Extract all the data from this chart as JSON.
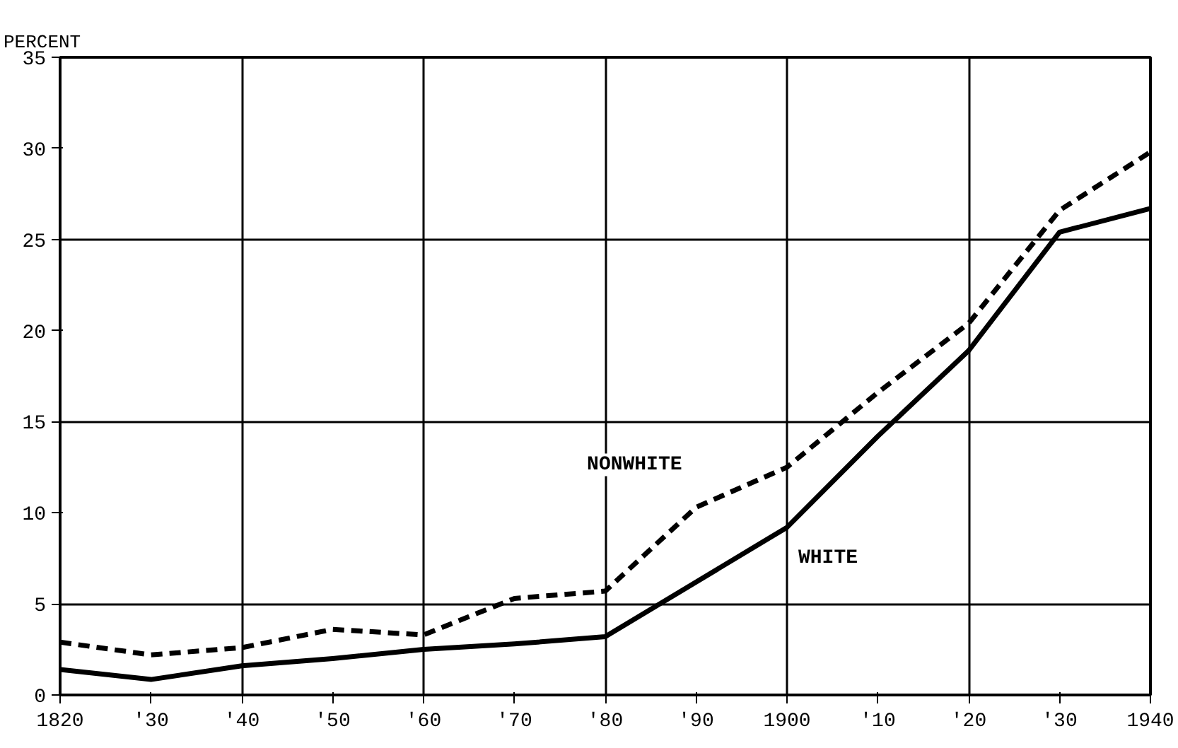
{
  "chart_data": {
    "type": "line",
    "ylabel": "PERCENT",
    "x": [
      1820,
      1830,
      1840,
      1850,
      1860,
      1870,
      1880,
      1890,
      1900,
      1910,
      1920,
      1930,
      1940
    ],
    "series": [
      {
        "name": "WHITE",
        "color": "#000000",
        "line_style": "solid",
        "values": [
          1.4,
          0.85,
          1.6,
          2.0,
          2.5,
          2.8,
          3.2,
          6.2,
          9.2,
          14.2,
          18.9,
          25.4,
          26.7
        ]
      },
      {
        "name": "NONWHITE",
        "color": "#000000",
        "line_style": "dashed",
        "values": [
          2.9,
          2.2,
          2.6,
          3.6,
          3.3,
          5.3,
          5.7,
          10.3,
          12.5,
          16.6,
          20.4,
          26.6,
          29.8
        ]
      }
    ],
    "xlim": [
      1820,
      1940
    ],
    "ylim": [
      0,
      35
    ],
    "xticks": [
      1820,
      {
        "value": 1830,
        "label": "'30"
      },
      {
        "value": 1840,
        "label": "'40"
      },
      {
        "value": 1850,
        "label": "'50"
      },
      {
        "value": 1860,
        "label": "'60"
      },
      {
        "value": 1870,
        "label": "'70"
      },
      {
        "value": 1880,
        "label": "'80"
      },
      {
        "value": 1890,
        "label": "'90"
      },
      1900,
      {
        "value": 1910,
        "label": "'10"
      },
      {
        "value": 1920,
        "label": "'20"
      },
      {
        "value": 1930,
        "label": "'30"
      },
      1940
    ],
    "yticks": [
      0,
      5,
      10,
      15,
      20,
      25,
      30,
      35
    ],
    "grid": true,
    "marker": "none"
  }
}
